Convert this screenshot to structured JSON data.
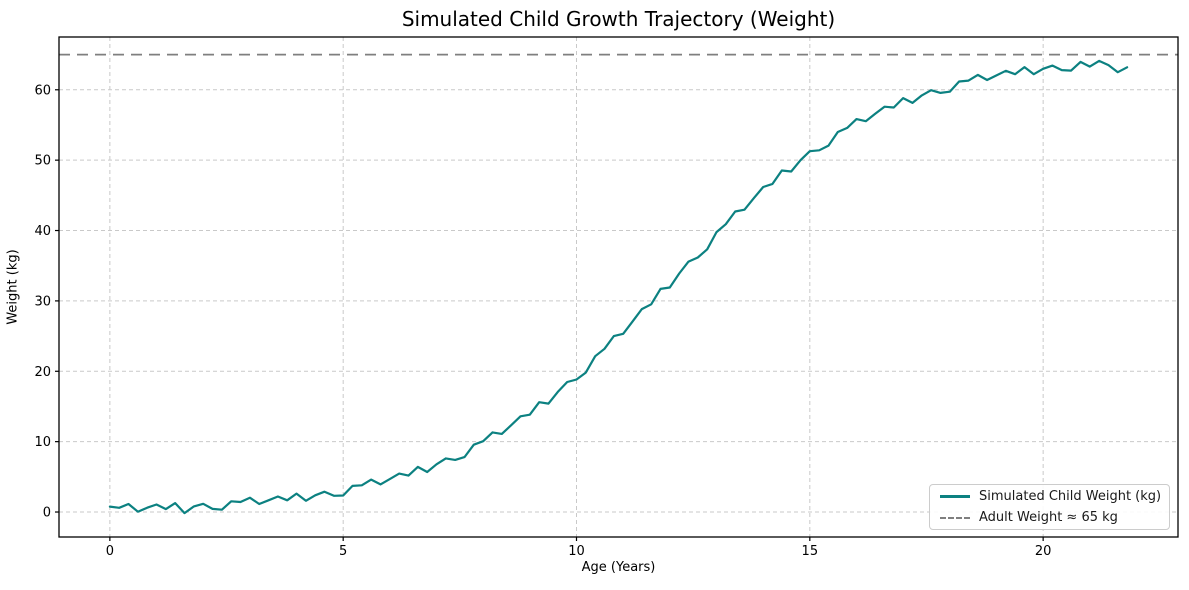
{
  "title": "Simulated Child Growth Trajectory (Weight)",
  "axes": {
    "xlabel": "Age (Years)",
    "ylabel": "Weight (kg)",
    "xticks": [
      0,
      5,
      10,
      15,
      20
    ],
    "yticks": [
      0,
      10,
      20,
      30,
      40,
      50,
      60
    ],
    "xlim": [
      -1.09,
      22.89
    ],
    "ylim": [
      -3.55,
      67.5
    ]
  },
  "colors": {
    "line": "#0c8181",
    "adult_line": "#7f7f7f",
    "grid": "#c9c9c9",
    "spine": "#000000"
  },
  "legend": {
    "items": [
      {
        "label": "Simulated Child Weight (kg)",
        "swatch": "solid-line"
      },
      {
        "label": "Adult Weight ≈ 65 kg",
        "swatch": "dashed-line"
      }
    ]
  },
  "chart_data": {
    "type": "line",
    "title": "Simulated Child Growth Trajectory (Weight)",
    "xlabel": "Age (Years)",
    "ylabel": "Weight (kg)",
    "xlim": [
      -1.09,
      22.89
    ],
    "ylim": [
      -3.55,
      67.5
    ],
    "grid": true,
    "legend_position": "lower right",
    "adult_weight": 65,
    "x": [
      0,
      0.2,
      0.4,
      0.6,
      0.8,
      1,
      1.2,
      1.4,
      1.6,
      1.8,
      2,
      2.2,
      2.4,
      2.6,
      2.8,
      3,
      3.2,
      3.4,
      3.6,
      3.8,
      4,
      4.2,
      4.4,
      4.6,
      4.8,
      5,
      5.2,
      5.4,
      5.6,
      5.8,
      6,
      6.2,
      6.4,
      6.6,
      6.8,
      7,
      7.2,
      7.4,
      7.6,
      7.8,
      8,
      8.2,
      8.4,
      8.6,
      8.8,
      9,
      9.2,
      9.4,
      9.6,
      9.8,
      10,
      10.2,
      10.4,
      10.6,
      10.8,
      11,
      11.2,
      11.4,
      11.6,
      11.8,
      12,
      12.2,
      12.4,
      12.6,
      12.8,
      13,
      13.2,
      13.4,
      13.6,
      13.8,
      14,
      14.2,
      14.4,
      14.6,
      14.8,
      15,
      15.2,
      15.4,
      15.6,
      15.8,
      16,
      16.2,
      16.4,
      16.6,
      16.8,
      17,
      17.2,
      17.4,
      17.6,
      17.8,
      18,
      18.2,
      18.4,
      18.6,
      18.8,
      19,
      19.2,
      19.4,
      19.6,
      19.8,
      20,
      20.2,
      20.4,
      20.6,
      20.8,
      21,
      21.2,
      21.4,
      21.6,
      21.8
    ],
    "series": [
      {
        "name": "Simulated Child Weight (kg)",
        "values": [
          0.77,
          0.6,
          1.14,
          0.05,
          0.62,
          1.07,
          0.42,
          1.27,
          -0.15,
          0.8,
          1.17,
          0.45,
          0.33,
          1.52,
          1.42,
          2.03,
          1.14,
          1.67,
          2.21,
          1.66,
          2.62,
          1.59,
          2.38,
          2.89,
          2.31,
          2.35,
          3.71,
          3.79,
          4.6,
          3.93,
          4.68,
          5.46,
          5.17,
          6.41,
          5.68,
          6.78,
          7.62,
          7.4,
          7.81,
          9.57,
          10.07,
          11.31,
          11.1,
          12.33,
          13.6,
          13.83,
          15.6,
          15.41,
          17.07,
          18.47,
          18.83,
          19.81,
          22.14,
          23.2,
          25.0,
          25.32,
          27.06,
          28.83,
          29.51,
          31.71,
          31.9,
          33.89,
          35.59,
          36.17,
          37.33,
          39.78,
          40.9,
          42.7,
          42.96,
          44.59,
          46.18,
          46.62,
          48.53,
          48.39,
          50.0,
          51.27,
          51.4,
          52.07,
          54.0,
          54.59,
          55.83,
          55.53,
          56.59,
          57.6,
          57.48,
          58.82,
          58.13,
          59.2,
          59.94,
          59.55,
          59.73,
          61.18,
          61.31,
          62.11,
          61.39,
          62.05,
          62.69,
          62.21,
          63.22,
          62.21,
          62.98,
          63.44,
          62.79,
          62.73,
          63.96,
          63.3,
          64.1,
          63.5,
          62.5,
          63.2
        ]
      },
      {
        "name": "Adult Weight ≈ 65 kg",
        "constant": 65
      }
    ]
  }
}
